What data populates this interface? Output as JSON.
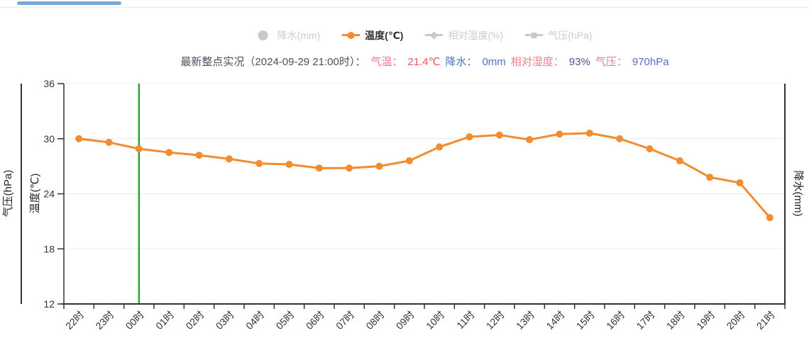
{
  "page": {
    "top_bar_color": "#79a7d9"
  },
  "legend": {
    "items": [
      {
        "label": "降水(mm)",
        "marker": "circle",
        "color": "#c9c9c9",
        "text_color": "#cccccc",
        "active": false
      },
      {
        "label": "温度(℃)",
        "marker": "line-dot",
        "color": "#f18c30",
        "text_color": "#333333",
        "active": true
      },
      {
        "label": "相对湿度(%)",
        "marker": "line-diamond",
        "color": "#c9c9c9",
        "text_color": "#cccccc",
        "active": false
      },
      {
        "label": "气压(hPa)",
        "marker": "line-square",
        "color": "#c9c9c9",
        "text_color": "#cccccc",
        "active": false
      }
    ]
  },
  "status": {
    "segments": [
      {
        "text": "最新整点实况（2024-09-29 21:00时）：",
        "color": "#4a5160"
      },
      {
        "text": "气温：",
        "color": "#f0758a"
      },
      {
        "text": "21.4℃",
        "color": "#f25555"
      },
      {
        "text": "降水：",
        "color": "#4a74c9"
      },
      {
        "text": "0mm",
        "color": "#4a74c9"
      },
      {
        "text": "相对湿度：",
        "color": "#ed808d"
      },
      {
        "text": "93%",
        "color": "#46548c"
      },
      {
        "text": "气压：",
        "color": "#ed808d"
      },
      {
        "text": "970hPa",
        "color": "#5c6ec0"
      }
    ]
  },
  "chart_data": {
    "type": "line",
    "x": [
      "22时",
      "23时",
      "00时",
      "01时",
      "02时",
      "03时",
      "04时",
      "05时",
      "06时",
      "07时",
      "08时",
      "09时",
      "10时",
      "11时",
      "12时",
      "13时",
      "14时",
      "15时",
      "16时",
      "17时",
      "18时",
      "19时",
      "20时",
      "21时"
    ],
    "series": [
      {
        "name": "温度(℃)",
        "color": "#f18c30",
        "values": [
          30.0,
          29.6,
          28.9,
          28.5,
          28.2,
          27.8,
          27.3,
          27.2,
          26.8,
          26.8,
          27.0,
          27.6,
          29.1,
          30.2,
          30.4,
          29.9,
          30.5,
          30.6,
          30.0,
          28.9,
          27.6,
          25.8,
          25.2,
          21.4
        ]
      }
    ],
    "ylim": [
      12,
      36
    ],
    "yticks": [
      36,
      30,
      24,
      18,
      12
    ],
    "ylabel_pressure": "气压(hPa)",
    "ylabel_temperature": "温度(℃)",
    "ylabel_right": "降水(mm)",
    "grid_horizontal": true,
    "grid_color": "#e9ecef",
    "axis_color": "#333333",
    "tick_text_color": "#333333",
    "marker_line_x": "00时",
    "marker_line_color": "#2aa338",
    "legend_position": "top-center"
  }
}
